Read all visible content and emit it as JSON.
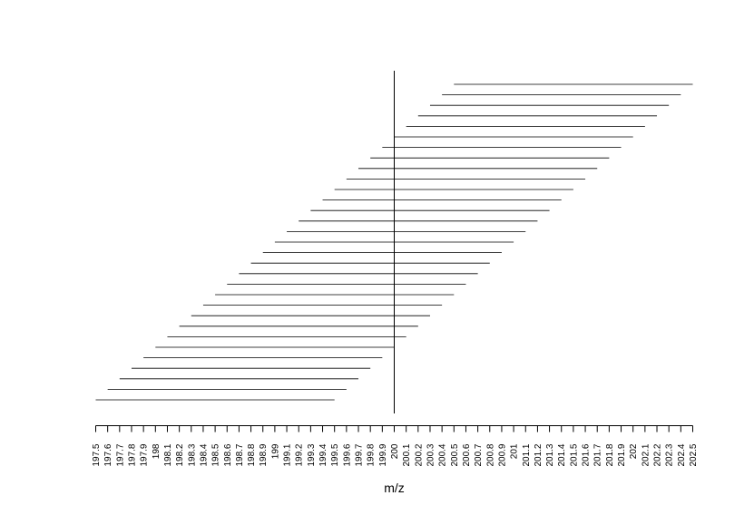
{
  "chart_data": {
    "type": "segment",
    "xlabel": "m/z",
    "xlim": [
      197.5,
      202.5
    ],
    "x_ticks": [
      197.5,
      197.6,
      197.7,
      197.8,
      197.9,
      198,
      198.1,
      198.2,
      198.3,
      198.4,
      198.5,
      198.6,
      198.7,
      198.8,
      198.9,
      199,
      199.1,
      199.2,
      199.3,
      199.4,
      199.5,
      199.6,
      199.7,
      199.8,
      199.9,
      200,
      200.1,
      200.2,
      200.3,
      200.4,
      200.5,
      200.6,
      200.7,
      200.8,
      200.9,
      201,
      201.1,
      201.2,
      201.3,
      201.4,
      201.5,
      201.6,
      201.7,
      201.8,
      201.9,
      202,
      202.1,
      202.2,
      202.3,
      202.4,
      202.5
    ],
    "x_tick_labels": [
      "197.5",
      "197.6",
      "197.7",
      "197.8",
      "197.9",
      "198",
      "198.1",
      "198.2",
      "198.3",
      "198.4",
      "198.5",
      "198.6",
      "198.7",
      "198.8",
      "198.9",
      "199",
      "199.1",
      "199.2",
      "199.3",
      "199.4",
      "199.5",
      "199.6",
      "199.7",
      "199.8",
      "199.9",
      "200",
      "200.1",
      "200.2",
      "200.3",
      "200.4",
      "200.5",
      "200.6",
      "200.7",
      "200.8",
      "200.9",
      "201",
      "201.1",
      "201.2",
      "201.3",
      "201.4",
      "201.5",
      "201.6",
      "201.7",
      "201.8",
      "201.9",
      "202",
      "202.1",
      "202.2",
      "202.3",
      "202.4",
      "202.5"
    ],
    "reference_line": 200,
    "segments": [
      {
        "from": 197.5,
        "to": 199.5
      },
      {
        "from": 197.6,
        "to": 199.6
      },
      {
        "from": 197.7,
        "to": 199.7
      },
      {
        "from": 197.8,
        "to": 199.8
      },
      {
        "from": 197.9,
        "to": 199.9
      },
      {
        "from": 198.0,
        "to": 200.0
      },
      {
        "from": 198.1,
        "to": 200.1
      },
      {
        "from": 198.2,
        "to": 200.2
      },
      {
        "from": 198.3,
        "to": 200.3
      },
      {
        "from": 198.4,
        "to": 200.4
      },
      {
        "from": 198.5,
        "to": 200.5
      },
      {
        "from": 198.6,
        "to": 200.6
      },
      {
        "from": 198.7,
        "to": 200.7
      },
      {
        "from": 198.8,
        "to": 200.8
      },
      {
        "from": 198.9,
        "to": 200.9
      },
      {
        "from": 199.0,
        "to": 201.0
      },
      {
        "from": 199.1,
        "to": 201.1
      },
      {
        "from": 199.2,
        "to": 201.2
      },
      {
        "from": 199.3,
        "to": 201.3
      },
      {
        "from": 199.4,
        "to": 201.4
      },
      {
        "from": 199.5,
        "to": 201.5
      },
      {
        "from": 199.6,
        "to": 201.6
      },
      {
        "from": 199.7,
        "to": 201.7
      },
      {
        "from": 199.8,
        "to": 201.8
      },
      {
        "from": 199.9,
        "to": 201.9
      },
      {
        "from": 200.0,
        "to": 202.0
      },
      {
        "from": 200.1,
        "to": 202.1
      },
      {
        "from": 200.2,
        "to": 202.2
      },
      {
        "from": 200.3,
        "to": 202.3
      },
      {
        "from": 200.4,
        "to": 202.4
      },
      {
        "from": 200.5,
        "to": 202.5
      }
    ],
    "line_color": "#000000"
  }
}
